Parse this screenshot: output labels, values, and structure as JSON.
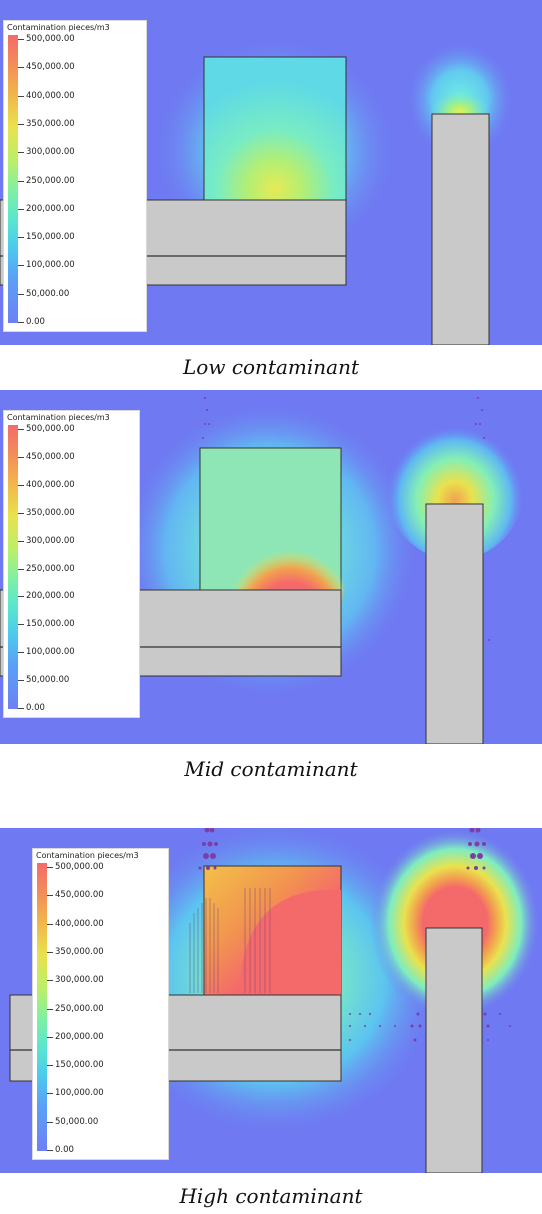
{
  "legend": {
    "title": "Contamination pieces/m3",
    "labels": [
      "500,000.00",
      "450,000.00",
      "400,000.00",
      "350,000.00",
      "300,000.00",
      "250,000.00",
      "200,000.00",
      "150,000.00",
      "100,000.00",
      "50,000.00",
      "0.00"
    ]
  },
  "panels": [
    {
      "caption": "Low contaminant"
    },
    {
      "caption": "Mid contaminant"
    },
    {
      "caption": "High contaminant"
    }
  ],
  "colors": {
    "background_blue": "#6f79f2",
    "structure_gray": "#c9c9c9",
    "max_red": "#f46a6a",
    "cyan": "#6fe3dc",
    "yellow": "#e9e24e"
  }
}
